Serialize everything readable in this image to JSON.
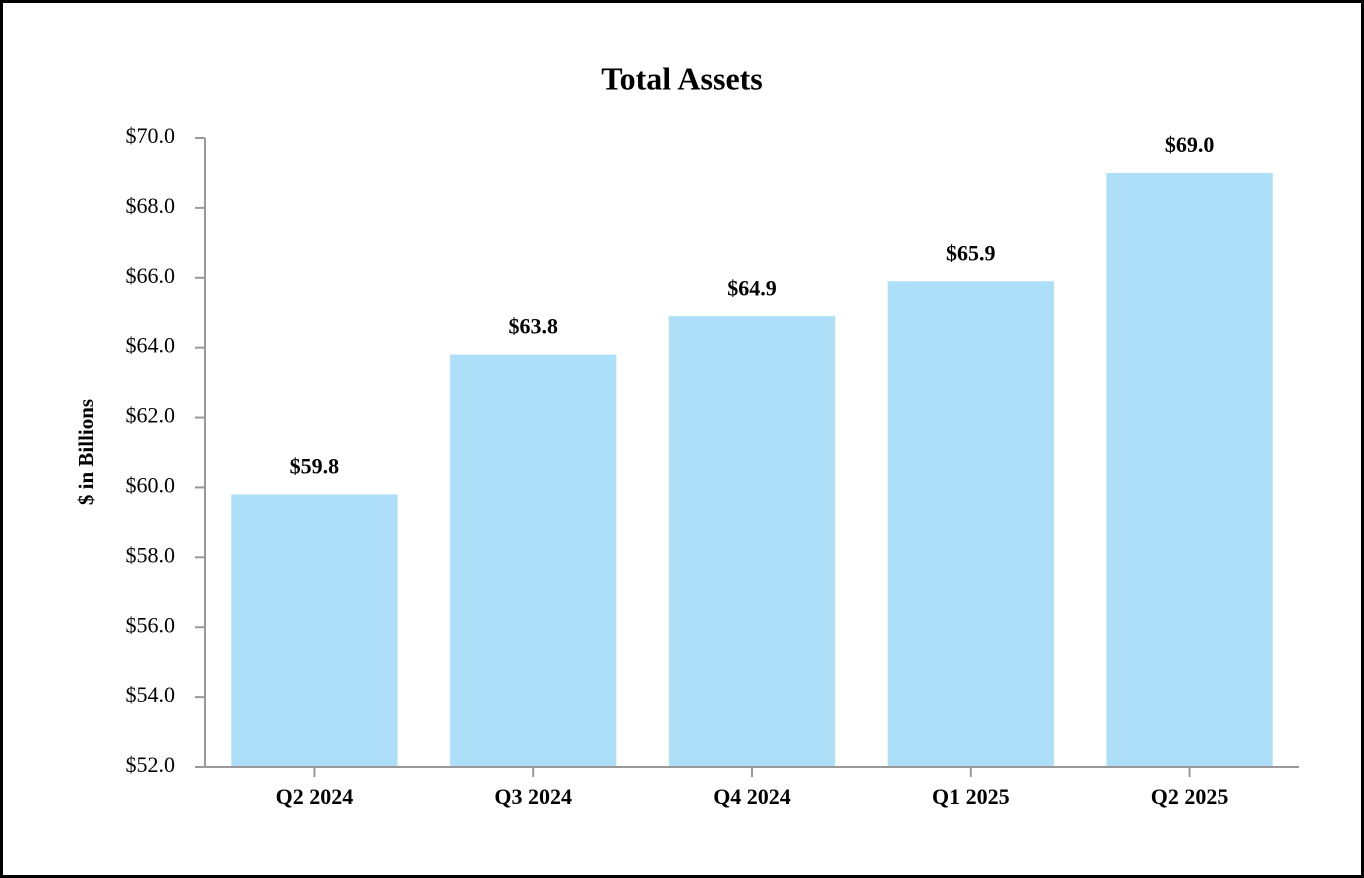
{
  "chart_data": {
    "type": "bar",
    "title": "Total Assets",
    "y_label": "$ in Billions",
    "categories": [
      "Q2 2024",
      "Q3 2024",
      "Q4 2024",
      "Q1 2025",
      "Q2 2025"
    ],
    "values": [
      59.8,
      63.8,
      64.9,
      65.9,
      69.0
    ],
    "value_labels": [
      "$59.8",
      "$63.8",
      "$64.9",
      "$65.9",
      "$69.0"
    ],
    "color": "#addff9",
    "ylim": [
      52,
      70
    ],
    "yticks": [
      {
        "value": 52,
        "label": "$52.0"
      },
      {
        "value": 54,
        "label": "$54.0"
      },
      {
        "value": 56,
        "label": "$56.0"
      },
      {
        "value": 58,
        "label": "$58.0"
      },
      {
        "value": 60,
        "label": "$60.0"
      },
      {
        "value": 62,
        "label": "$62.0"
      },
      {
        "value": 64,
        "label": "$64.0"
      },
      {
        "value": 66,
        "label": "$66.0"
      },
      {
        "value": 68,
        "label": "$68.0"
      },
      {
        "value": 70,
        "label": "$70.0"
      }
    ],
    "grid": false
  }
}
